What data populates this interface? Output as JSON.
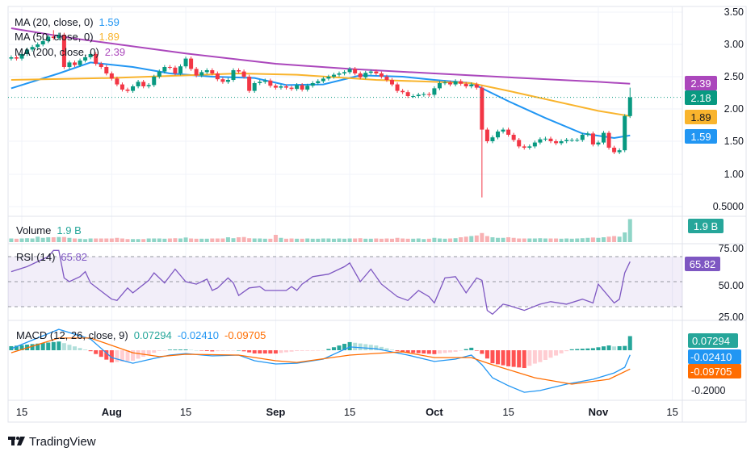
{
  "chart_data": {
    "type": "candlestick",
    "price_axis": {
      "ticks": [
        "3.50",
        "3.00",
        "2.50",
        "2.00",
        "1.50",
        "1.00",
        "0.5000"
      ],
      "ylim": [
        0.5,
        3.5
      ]
    },
    "time_axis": {
      "ticks": [
        {
          "date": "Jul 15",
          "label": "15",
          "bold": false
        },
        {
          "date": "Aug 1",
          "label": "Aug",
          "bold": true
        },
        {
          "date": "Aug 15",
          "label": "15",
          "bold": false
        },
        {
          "date": "Sep 1",
          "label": "Sep",
          "bold": true
        },
        {
          "date": "Sep 15",
          "label": "15",
          "bold": false
        },
        {
          "date": "Oct 1",
          "label": "Oct",
          "bold": true
        },
        {
          "date": "Oct 15",
          "label": "15",
          "bold": false
        },
        {
          "date": "Nov 1",
          "label": "Nov",
          "bold": true
        },
        {
          "date": "Nov 15",
          "label": "15",
          "bold": false
        }
      ]
    },
    "last_price": "2.18",
    "candles_note_fields": [
      "date",
      "close",
      "volume_billions"
    ],
    "candles": [
      [
        "Jul 13",
        2.8,
        0.3
      ],
      [
        "Jul 14",
        2.78,
        0.28
      ],
      [
        "Jul 15",
        2.85,
        0.3
      ],
      [
        "Jul 16",
        2.92,
        0.32
      ],
      [
        "Jul 17",
        2.96,
        0.3
      ],
      [
        "Jul 18",
        3.0,
        0.45
      ],
      [
        "Jul 19",
        3.05,
        0.35
      ],
      [
        "Jul 20",
        3.12,
        0.4
      ],
      [
        "Jul 21",
        3.1,
        0.4
      ],
      [
        "Jul 22",
        3.15,
        0.42
      ],
      [
        "Jul 23",
        2.65,
        0.42
      ],
      [
        "Jul 24",
        2.72,
        0.35
      ],
      [
        "Jul 25",
        2.68,
        0.3
      ],
      [
        "Jul 26",
        2.75,
        0.28
      ],
      [
        "Jul 27",
        2.8,
        0.25
      ],
      [
        "Jul 28",
        2.85,
        0.3
      ],
      [
        "Jul 29",
        2.7,
        0.3
      ],
      [
        "Jul 30",
        2.65,
        0.3
      ],
      [
        "Jul 31",
        2.55,
        0.3
      ],
      [
        "Aug 1",
        2.47,
        0.3
      ],
      [
        "Aug 2",
        2.38,
        0.35
      ],
      [
        "Aug 3",
        2.3,
        0.3
      ],
      [
        "Aug 4",
        2.28,
        0.25
      ],
      [
        "Aug 5",
        2.35,
        0.25
      ],
      [
        "Aug 6",
        2.42,
        0.25
      ],
      [
        "Aug 7",
        2.35,
        0.25
      ],
      [
        "Aug 8",
        2.37,
        0.3
      ],
      [
        "Aug 9",
        2.5,
        0.3
      ],
      [
        "Aug 10",
        2.58,
        0.3
      ],
      [
        "Aug 11",
        2.65,
        0.28
      ],
      [
        "Aug 12",
        2.64,
        0.3
      ],
      [
        "Aug 13",
        2.55,
        0.32
      ],
      [
        "Aug 14",
        2.66,
        0.3
      ],
      [
        "Aug 15",
        2.78,
        0.38
      ],
      [
        "Aug 16",
        2.62,
        0.3
      ],
      [
        "Aug 17",
        2.52,
        0.28
      ],
      [
        "Aug 18",
        2.57,
        0.28
      ],
      [
        "Aug 19",
        2.6,
        0.28
      ],
      [
        "Aug 20",
        2.55,
        0.3
      ],
      [
        "Aug 21",
        2.46,
        0.3
      ],
      [
        "Aug 22",
        2.42,
        0.3
      ],
      [
        "Aug 23",
        2.45,
        0.4
      ],
      [
        "Aug 24",
        2.6,
        0.32
      ],
      [
        "Aug 25",
        2.58,
        0.4
      ],
      [
        "Aug 26",
        2.5,
        0.42
      ],
      [
        "Aug 27",
        2.28,
        0.32
      ],
      [
        "Aug 28",
        2.4,
        0.3
      ],
      [
        "Aug 29",
        2.42,
        0.3
      ],
      [
        "Aug 30",
        2.44,
        0.28
      ],
      [
        "Aug 31",
        2.36,
        0.28
      ],
      [
        "Sep 1",
        2.33,
        0.6
      ],
      [
        "Sep 2",
        2.35,
        0.35
      ],
      [
        "Sep 3",
        2.33,
        0.28
      ],
      [
        "Sep 4",
        2.31,
        0.3
      ],
      [
        "Sep 5",
        2.37,
        0.28
      ],
      [
        "Sep 6",
        2.3,
        0.28
      ],
      [
        "Sep 7",
        2.36,
        0.3
      ],
      [
        "Sep 8",
        2.4,
        0.28
      ],
      [
        "Sep 9",
        2.43,
        0.28
      ],
      [
        "Sep 10",
        2.47,
        0.3
      ],
      [
        "Sep 11",
        2.5,
        0.3
      ],
      [
        "Sep 12",
        2.53,
        0.28
      ],
      [
        "Sep 13",
        2.55,
        0.3
      ],
      [
        "Sep 14",
        2.57,
        0.28
      ],
      [
        "Sep 15",
        2.62,
        0.3
      ],
      [
        "Sep 16",
        2.55,
        0.3
      ],
      [
        "Sep 17",
        2.49,
        0.32
      ],
      [
        "Sep 18",
        2.56,
        0.28
      ],
      [
        "Sep 19",
        2.58,
        0.28
      ],
      [
        "Sep 20",
        2.55,
        0.3
      ],
      [
        "Sep 21",
        2.5,
        0.28
      ],
      [
        "Sep 22",
        2.45,
        0.3
      ],
      [
        "Sep 23",
        2.38,
        0.28
      ],
      [
        "Sep 24",
        2.28,
        0.35
      ],
      [
        "Sep 25",
        2.26,
        0.3
      ],
      [
        "Sep 26",
        2.2,
        0.28
      ],
      [
        "Sep 27",
        2.2,
        0.28
      ],
      [
        "Sep 28",
        2.22,
        0.3
      ],
      [
        "Sep 29",
        2.23,
        0.25
      ],
      [
        "Sep 30",
        2.22,
        0.28
      ],
      [
        "Oct 1",
        2.32,
        0.35
      ],
      [
        "Oct 2",
        2.4,
        0.3
      ],
      [
        "Oct 3",
        2.41,
        0.28
      ],
      [
        "Oct 4",
        2.38,
        0.3
      ],
      [
        "Oct 5",
        2.43,
        0.32
      ],
      [
        "Oct 6",
        2.39,
        0.4
      ],
      [
        "Oct 7",
        2.35,
        0.45
      ],
      [
        "Oct 8",
        2.38,
        0.5
      ],
      [
        "Oct 9",
        2.33,
        0.55
      ],
      [
        "Oct 10",
        1.68,
        0.75
      ],
      [
        "Oct 11",
        1.5,
        0.5
      ],
      [
        "Oct 12",
        1.56,
        0.4
      ],
      [
        "Oct 13",
        1.65,
        0.35
      ],
      [
        "Oct 14",
        1.68,
        0.35
      ],
      [
        "Oct 15",
        1.6,
        0.4
      ],
      [
        "Oct 16",
        1.52,
        0.35
      ],
      [
        "Oct 17",
        1.42,
        0.3
      ],
      [
        "Oct 18",
        1.4,
        0.3
      ],
      [
        "Oct 19",
        1.42,
        0.3
      ],
      [
        "Oct 20",
        1.48,
        0.3
      ],
      [
        "Oct 21",
        1.53,
        0.32
      ],
      [
        "Oct 22",
        1.54,
        0.3
      ],
      [
        "Oct 23",
        1.5,
        0.3
      ],
      [
        "Oct 24",
        1.47,
        0.3
      ],
      [
        "Oct 25",
        1.5,
        0.28
      ],
      [
        "Oct 26",
        1.52,
        0.3
      ],
      [
        "Oct 27",
        1.52,
        0.28
      ],
      [
        "Oct 28",
        1.52,
        0.3
      ],
      [
        "Oct 29",
        1.6,
        0.32
      ],
      [
        "Oct 30",
        1.62,
        0.35
      ],
      [
        "Oct 31",
        1.45,
        0.38
      ],
      [
        "Nov 1",
        1.48,
        0.35
      ],
      [
        "Nov 2",
        1.63,
        0.4
      ],
      [
        "Nov 3",
        1.4,
        0.45
      ],
      [
        "Nov 4",
        1.33,
        0.5
      ],
      [
        "Nov 5",
        1.36,
        0.45
      ],
      [
        "Nov 6",
        1.89,
        0.8
      ],
      [
        "Nov 7",
        2.18,
        1.9
      ]
    ],
    "notable_wicks": [
      {
        "date": "Oct 10",
        "low": 0.63
      },
      {
        "date": "Nov 7",
        "high": 2.33
      },
      {
        "date": "Jul 21",
        "high": 3.22
      }
    ],
    "moving_averages": [
      {
        "name": "MA (20, close, 0)",
        "value": "1.59",
        "color": "#2196f3",
        "points": [
          [
            "Jul 13",
            2.32
          ],
          [
            "Jul 22",
            2.55
          ],
          [
            "Jul 28",
            2.72
          ],
          [
            "Aug 5",
            2.65
          ],
          [
            "Aug 12",
            2.55
          ],
          [
            "Aug 20",
            2.5
          ],
          [
            "Aug 28",
            2.48
          ],
          [
            "Sep 3",
            2.37
          ],
          [
            "Sep 10",
            2.38
          ],
          [
            "Sep 17",
            2.52
          ],
          [
            "Sep 25",
            2.5
          ],
          [
            "Oct 1",
            2.45
          ],
          [
            "Oct 8",
            2.4
          ],
          [
            "Oct 15",
            2.12
          ],
          [
            "Oct 22",
            1.86
          ],
          [
            "Oct 29",
            1.62
          ],
          [
            "Nov 4",
            1.55
          ],
          [
            "Nov 7",
            1.59
          ]
        ]
      },
      {
        "name": "MA (50, close, 0)",
        "value": "1.89",
        "color": "#f9b42d",
        "points": [
          [
            "Jul 13",
            2.45
          ],
          [
            "Aug 1",
            2.48
          ],
          [
            "Aug 15",
            2.52
          ],
          [
            "Aug 25",
            2.55
          ],
          [
            "Sep 5",
            2.53
          ],
          [
            "Sep 20",
            2.45
          ],
          [
            "Oct 1",
            2.42
          ],
          [
            "Oct 8",
            2.4
          ],
          [
            "Oct 15",
            2.28
          ],
          [
            "Nov 1",
            1.97
          ],
          [
            "Nov 7",
            1.89
          ]
        ]
      },
      {
        "name": "MA (200, close, 0)",
        "value": "2.39",
        "color": "#ab47bc",
        "points": [
          [
            "Jul 13",
            3.25
          ],
          [
            "Jul 25",
            3.09
          ],
          [
            "Aug 15",
            2.86
          ],
          [
            "Sep 1",
            2.7
          ],
          [
            "Sep 15",
            2.62
          ],
          [
            "Oct 1",
            2.55
          ],
          [
            "Oct 15",
            2.49
          ],
          [
            "Nov 1",
            2.42
          ],
          [
            "Nov 7",
            2.39
          ]
        ]
      }
    ],
    "volume": {
      "label": "Volume",
      "value": "1.9 B",
      "up_color": "#8fd5c7",
      "down_color": "#f8b1b3"
    },
    "rsi": {
      "label": "RSI (14)",
      "value": "65.82",
      "color": "#7e57c2",
      "ticks": [
        "75.00",
        "50.00",
        "25.00"
      ],
      "bands": [
        70,
        50,
        30
      ],
      "ylim": [
        20,
        80
      ],
      "points": [
        [
          "Jul 13",
          58
        ],
        [
          "Jul 16",
          62
        ],
        [
          "Jul 20",
          70
        ],
        [
          "Jul 21",
          75
        ],
        [
          "Jul 22",
          75
        ],
        [
          "Jul 23",
          53
        ],
        [
          "Jul 24",
          50
        ],
        [
          "Jul 26",
          54
        ],
        [
          "Jul 27",
          58
        ],
        [
          "Jul 28",
          49
        ],
        [
          "Aug 1",
          36
        ],
        [
          "Aug 2",
          35
        ],
        [
          "Aug 4",
          45
        ],
        [
          "Aug 5",
          41
        ],
        [
          "Aug 8",
          51
        ],
        [
          "Aug 9",
          57
        ],
        [
          "Aug 11",
          49
        ],
        [
          "Aug 13",
          60
        ],
        [
          "Aug 15",
          50
        ],
        [
          "Aug 17",
          48
        ],
        [
          "Aug 19",
          52
        ],
        [
          "Aug 20",
          43
        ],
        [
          "Aug 21",
          45
        ],
        [
          "Aug 23",
          53
        ],
        [
          "Aug 24",
          49
        ],
        [
          "Aug 25",
          39
        ],
        [
          "Aug 27",
          45
        ],
        [
          "Aug 29",
          46
        ],
        [
          "Aug 30",
          43
        ],
        [
          "Sep 3",
          43
        ],
        [
          "Sep 4",
          46
        ],
        [
          "Sep 5",
          43
        ],
        [
          "Sep 6",
          48
        ],
        [
          "Sep 8",
          54
        ],
        [
          "Sep 11",
          56
        ],
        [
          "Sep 14",
          62
        ],
        [
          "Sep 15",
          65
        ],
        [
          "Sep 17",
          50
        ],
        [
          "Sep 19",
          60
        ],
        [
          "Sep 21",
          48
        ],
        [
          "Sep 24",
          38
        ],
        [
          "Sep 26",
          35
        ],
        [
          "Sep 28",
          43
        ],
        [
          "Sep 30",
          38
        ],
        [
          "Oct 1",
          33
        ],
        [
          "Oct 3",
          53
        ],
        [
          "Oct 5",
          54
        ],
        [
          "Oct 7",
          41
        ],
        [
          "Oct 9",
          53
        ],
        [
          "Oct 10",
          51
        ],
        [
          "Oct 11",
          27
        ],
        [
          "Oct 12",
          24
        ],
        [
          "Oct 14",
          32
        ],
        [
          "Oct 15",
          31
        ],
        [
          "Oct 18",
          27
        ],
        [
          "Oct 21",
          32
        ],
        [
          "Oct 23",
          34
        ],
        [
          "Oct 26",
          32
        ],
        [
          "Oct 29",
          36
        ],
        [
          "Oct 31",
          33
        ],
        [
          "Nov 1",
          48
        ],
        [
          "Nov 4",
          33
        ],
        [
          "Nov 5",
          36
        ],
        [
          "Nov 6",
          57
        ],
        [
          "Nov 7",
          66
        ]
      ]
    },
    "macd": {
      "label": "MACD (12, 26, close, 9)",
      "histogram_value": "0.07294",
      "macd_value": "-0.02410",
      "signal_value": "-0.09705",
      "tick": "-0.2000",
      "colors": {
        "macd": "#2196f3",
        "signal": "#ff6d00",
        "hist_up_strong": "#26a69a",
        "hist_up_weak": "#b2dfdb",
        "hist_down_strong": "#ff5252",
        "hist_down_weak": "#ffcdd2"
      },
      "macd_points": [
        [
          "Jul 13",
          0.008
        ],
        [
          "Jul 22",
          0.108
        ],
        [
          "Jul 28",
          0.058
        ],
        [
          "Aug 1",
          -0.038
        ],
        [
          "Aug 5",
          -0.067
        ],
        [
          "Aug 9",
          -0.042
        ],
        [
          "Aug 12",
          -0.025
        ],
        [
          "Aug 15",
          -0.017
        ],
        [
          "Aug 20",
          -0.029
        ],
        [
          "Aug 25",
          -0.025
        ],
        [
          "Aug 28",
          -0.054
        ],
        [
          "Sep 1",
          -0.071
        ],
        [
          "Sep 5",
          -0.067
        ],
        [
          "Sep 10",
          -0.046
        ],
        [
          "Sep 15",
          0.017
        ],
        [
          "Sep 20",
          0.008
        ],
        [
          "Sep 26",
          -0.025
        ],
        [
          "Oct 1",
          -0.058
        ],
        [
          "Oct 5",
          -0.046
        ],
        [
          "Oct 8",
          -0.025
        ],
        [
          "Oct 10",
          -0.075
        ],
        [
          "Oct 12",
          -0.142
        ],
        [
          "Oct 15",
          -0.183
        ],
        [
          "Oct 18",
          -0.217
        ],
        [
          "Oct 21",
          -0.208
        ],
        [
          "Oct 26",
          -0.175
        ],
        [
          "Oct 31",
          -0.15
        ],
        [
          "Nov 4",
          -0.117
        ],
        [
          "Nov 6",
          -0.088
        ],
        [
          "Nov 7",
          -0.024
        ]
      ],
      "signal_points": [
        [
          "Jul 13",
          -0.013
        ],
        [
          "Jul 22",
          0.063
        ],
        [
          "Jul 28",
          0.063
        ],
        [
          "Aug 5",
          -0.013
        ],
        [
          "Aug 10",
          -0.033
        ],
        [
          "Aug 15",
          -0.021
        ],
        [
          "Aug 25",
          -0.025
        ],
        [
          "Sep 1",
          -0.054
        ],
        [
          "Sep 5",
          -0.063
        ],
        [
          "Sep 15",
          -0.025
        ],
        [
          "Sep 25",
          -0.008
        ],
        [
          "Oct 1",
          -0.038
        ],
        [
          "Oct 8",
          -0.038
        ],
        [
          "Oct 12",
          -0.075
        ],
        [
          "Oct 20",
          -0.142
        ],
        [
          "Oct 27",
          -0.175
        ],
        [
          "Nov 3",
          -0.15
        ],
        [
          "Nov 7",
          -0.097
        ]
      ]
    },
    "colors": {
      "up": "#089981",
      "down": "#f23645"
    }
  },
  "branding": {
    "name": "TradingView"
  }
}
